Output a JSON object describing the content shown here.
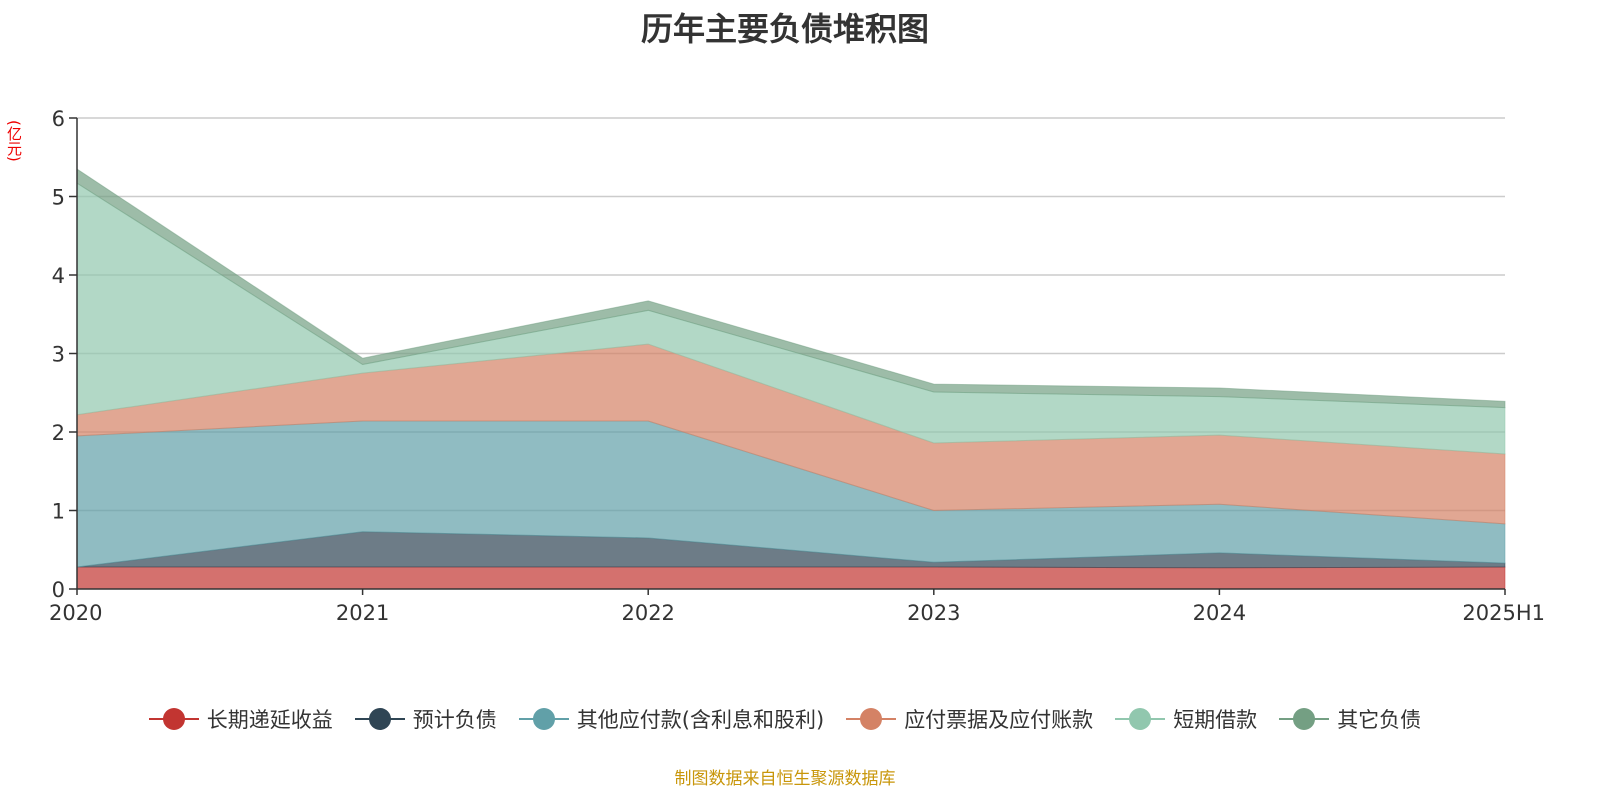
{
  "chart_data": {
    "type": "area",
    "stacked": true,
    "title": "历年主要负债堆积图",
    "ylabel": "(亿元)",
    "xlabel": "",
    "categories": [
      "2020",
      "2021",
      "2022",
      "2023",
      "2024",
      "2025H1"
    ],
    "ylim": [
      0,
      6
    ],
    "yticks": [
      "0",
      "1",
      "2",
      "3",
      "4",
      "5",
      "6"
    ],
    "grid": true,
    "legend_position": "bottom",
    "series": [
      {
        "name": "长期递延收益",
        "color": "#c23531",
        "values": [
          0.28,
          0.28,
          0.28,
          0.28,
          0.27,
          0.28
        ]
      },
      {
        "name": "预计负债",
        "color": "#2f4554",
        "values": [
          0.0,
          0.45,
          0.37,
          0.06,
          0.19,
          0.05
        ]
      },
      {
        "name": "其他应付款(含利息和股利)",
        "color": "#61a0a8",
        "values": [
          1.67,
          1.41,
          1.49,
          0.66,
          0.62,
          0.5
        ]
      },
      {
        "name": "应付票据及应付账款",
        "color": "#d48265",
        "values": [
          0.27,
          0.61,
          0.98,
          0.86,
          0.88,
          0.89
        ]
      },
      {
        "name": "短期借款",
        "color": "#91c7ae",
        "values": [
          2.95,
          0.11,
          0.43,
          0.65,
          0.49,
          0.59
        ]
      },
      {
        "name": "其它负债",
        "color": "#749f83",
        "values": [
          0.18,
          0.08,
          0.12,
          0.1,
          0.11,
          0.08
        ]
      }
    ]
  },
  "source": "制图数据来自恒生聚源数据库"
}
